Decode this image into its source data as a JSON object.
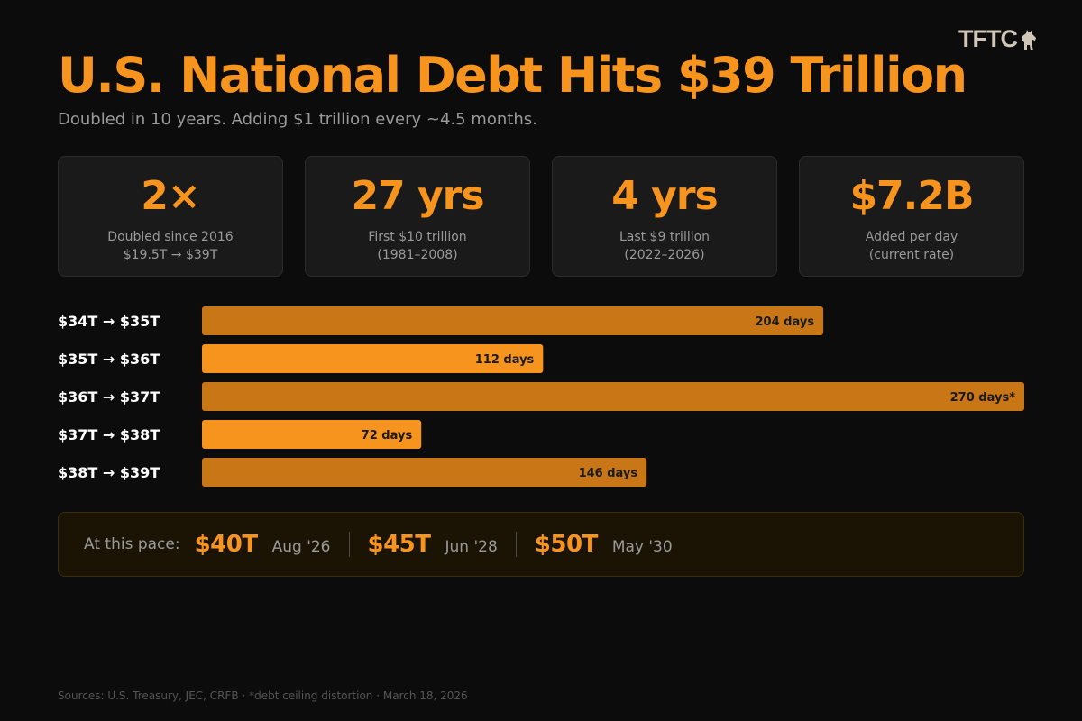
{
  "brand": {
    "logo_text": "TFTC"
  },
  "title": "U.S. National Debt Hits $39 Trillion",
  "subtitle": "Doubled in 10 years. Adding $1 trillion every ~4.5 months.",
  "stats": [
    {
      "value": "2×",
      "line1": "Doubled since 2016",
      "line2": "$19.5T → $39T"
    },
    {
      "value": "27 yrs",
      "line1": "First $10 trillion",
      "line2": "(1981–2008)"
    },
    {
      "value": "4 yrs",
      "line1": "Last $9 trillion",
      "line2": "(2022–2026)"
    },
    {
      "value": "$7.2B",
      "line1": "Added per day",
      "line2": "(current rate)"
    }
  ],
  "chart_data": {
    "type": "bar",
    "orientation": "horizontal",
    "categories": [
      "$34T → $35T",
      "$35T → $36T",
      "$36T → $37T",
      "$37T → $38T",
      "$38T → $39T"
    ],
    "values": [
      204,
      112,
      270,
      72,
      146
    ],
    "value_labels": [
      "204 days",
      "112 days",
      "270 days*",
      "72 days",
      "146 days"
    ],
    "unit": "days",
    "xlim": [
      0,
      270
    ],
    "grid": false,
    "colors": [
      "#c87616",
      "#f7941d",
      "#c87616",
      "#f7941d",
      "#c87616"
    ],
    "label_color": "#1a1a1a"
  },
  "pace": {
    "label": "At this pace:",
    "milestones": [
      {
        "amount": "$40T",
        "date": "Aug '26"
      },
      {
        "amount": "$45T",
        "date": "Jun '28"
      },
      {
        "amount": "$50T",
        "date": "May '30"
      }
    ]
  },
  "sources": "Sources: U.S. Treasury, JEC, CRFB · *debt ceiling distortion · March 18, 2026",
  "colors": {
    "accent": "#f7941d",
    "accent_dark": "#c87616",
    "background": "#0c0c0c",
    "card": "#1a1a1a",
    "muted_text": "#9a9a9a"
  }
}
